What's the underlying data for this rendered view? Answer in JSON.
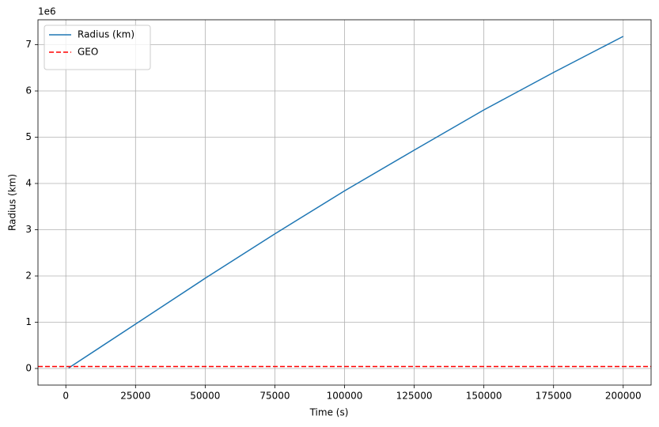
{
  "chart_data": {
    "type": "line",
    "xlabel": "Time (s)",
    "ylabel": "Radius (km)",
    "y_offset_label": "1e6",
    "series": [
      {
        "name": "Radius (km)",
        "color": "#1f77b4",
        "x": [
          1000,
          25000,
          50000,
          75000,
          100000,
          125000,
          150000,
          175000,
          200000
        ],
        "values": [
          10000,
          960000,
          1950000,
          2910000,
          3840000,
          4720000,
          5590000,
          6400000,
          7180000
        ]
      }
    ],
    "hlines": [
      {
        "name": "GEO",
        "value": 42164,
        "color": "#ff0000",
        "linestyle": "dashed"
      }
    ],
    "xlim": [
      -10000,
      210000
    ],
    "xticks": [
      0,
      25000,
      50000,
      75000,
      100000,
      125000,
      150000,
      175000,
      200000
    ],
    "ylim": [
      -359000,
      7539000
    ],
    "yticks": [
      0,
      {
        "value": 1000000,
        "label": "1"
      },
      {
        "value": 2000000,
        "label": "2"
      },
      {
        "value": 3000000,
        "label": "3"
      },
      {
        "value": 4000000,
        "label": "4"
      },
      {
        "value": 5000000,
        "label": "5"
      },
      {
        "value": 6000000,
        "label": "6"
      },
      {
        "value": 7000000,
        "label": "7"
      }
    ],
    "grid": true,
    "legend": "upper-left"
  }
}
